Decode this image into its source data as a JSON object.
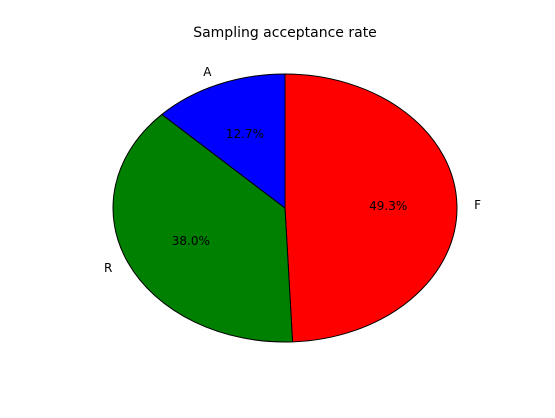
{
  "chart_data": {
    "type": "pie",
    "title": "Sampling acceptance rate",
    "slices": [
      {
        "label": "F",
        "value": 49.3,
        "pct_label": "49.3%",
        "color": "#ff0000"
      },
      {
        "label": "R",
        "value": 38.0,
        "pct_label": "38.0%",
        "color": "#008000"
      },
      {
        "label": "A",
        "value": 12.7,
        "pct_label": "12.7%",
        "color": "#0000ff"
      }
    ],
    "start_angle_deg": 90,
    "direction": "clockwise",
    "legend": "none",
    "grid": false
  }
}
